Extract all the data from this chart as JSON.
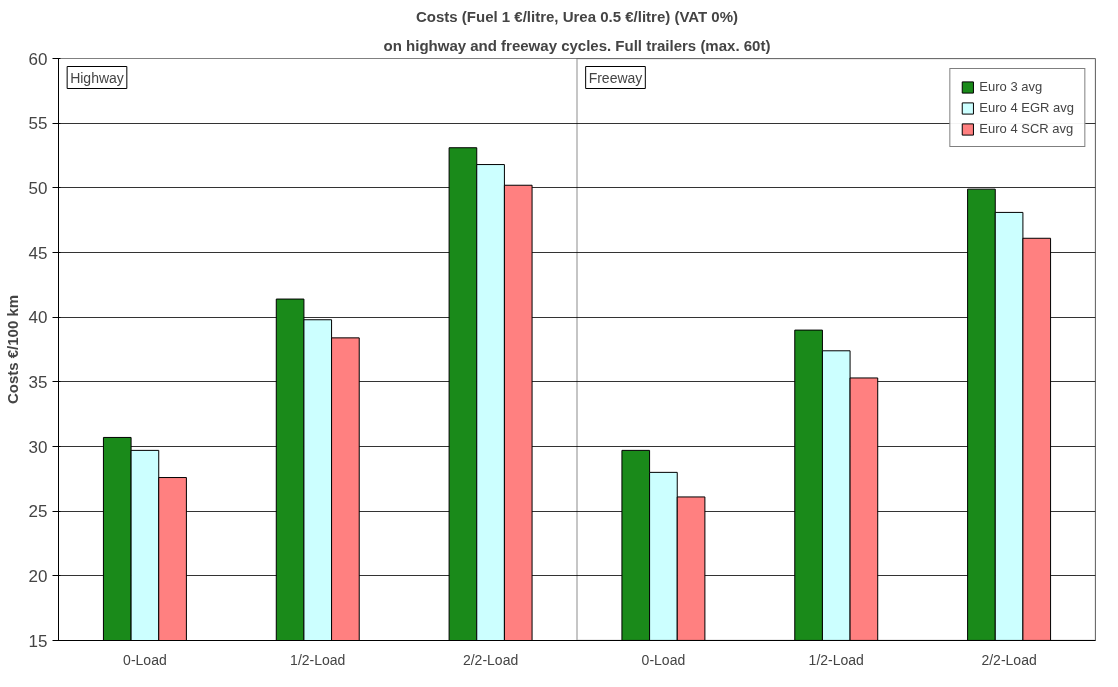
{
  "chart_data": {
    "type": "bar",
    "title": "Costs (Fuel 1 €/litre, Urea 0.5 €/litre) (VAT 0%)",
    "subtitle": "on highway and freeway cycles. Full trailers (max. 60t)",
    "ylabel": "Costs €/100 km",
    "categories": [
      "0-Load",
      "1/2-Load",
      "2/2-Load",
      "0-Load",
      "1/2-Load",
      "2/2-Load"
    ],
    "series": [
      {
        "name": "Euro 3 avg",
        "color": "#1a8a1a",
        "values": [
          30.7,
          41.4,
          53.1,
          29.7,
          39.0,
          49.9
        ]
      },
      {
        "name": "Euro 4 EGR avg",
        "color": "#ccffff",
        "values": [
          29.7,
          39.8,
          51.8,
          28.0,
          37.4,
          48.1
        ]
      },
      {
        "name": "Euro 4 SCR avg",
        "color": "#ff8080",
        "values": [
          27.6,
          38.4,
          50.2,
          26.1,
          35.3,
          46.1
        ]
      }
    ],
    "annotations": [
      "Highway",
      "Freeway"
    ],
    "ylim": [
      15,
      60
    ],
    "yticks": [
      15,
      20,
      25,
      30,
      35,
      40,
      45,
      50,
      55,
      60
    ],
    "grid": "y",
    "legend": "top right"
  }
}
